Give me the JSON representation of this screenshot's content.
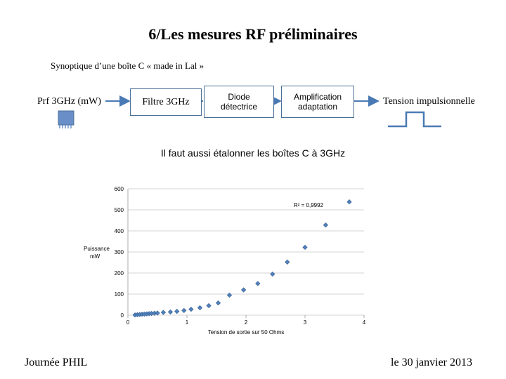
{
  "slide": {
    "title": "6/Les mesures RF préliminaires",
    "subtitle": "Synoptique d’une boîte C « made in Lal »",
    "note": "Il faut aussi étalonner les boîtes C à 3GHz",
    "footer_left": "Journée PHIL",
    "footer_right": "le 30 janvier 2013"
  },
  "diagram": {
    "input_label": "Prf 3GHz (mW)",
    "filter_label": "Filtre 3GHz",
    "diode_label_line1": "Diode",
    "diode_label_line2": "détectrice",
    "ampli_label_line1": "Amplification",
    "ampli_label_line2": "adaptation",
    "output_label": "Tension impulsionnelle",
    "box_border_color": "#4a6f96",
    "connector_color": "#4a7ab5",
    "icon_input": "rf-connector-icon",
    "icon_output": "pulse-waveform-icon"
  },
  "chart_data": {
    "type": "scatter",
    "xlabel": "Tension de sortie sur 50 Ohms",
    "ylabel_line1": "Puissance",
    "ylabel_line2": "mW",
    "xlim": [
      0,
      4
    ],
    "ylim": [
      0,
      600
    ],
    "xticks": [
      "0",
      "1",
      "2",
      "3",
      "4"
    ],
    "yticks": [
      "0",
      "100",
      "200",
      "300",
      "400",
      "500",
      "600"
    ],
    "grid": true,
    "annotation": "R² = 0,9992",
    "marker_color": "#4f81bd",
    "points": [
      [
        0.12,
        1
      ],
      [
        0.16,
        2
      ],
      [
        0.2,
        3
      ],
      [
        0.24,
        4
      ],
      [
        0.28,
        5
      ],
      [
        0.32,
        6
      ],
      [
        0.36,
        7
      ],
      [
        0.4,
        8
      ],
      [
        0.45,
        9
      ],
      [
        0.5,
        10
      ],
      [
        0.6,
        13
      ],
      [
        0.72,
        15
      ],
      [
        0.83,
        18
      ],
      [
        0.95,
        22
      ],
      [
        1.07,
        28
      ],
      [
        1.22,
        35
      ],
      [
        1.37,
        45
      ],
      [
        1.53,
        58
      ],
      [
        1.72,
        95
      ],
      [
        1.96,
        120
      ],
      [
        2.2,
        150
      ],
      [
        2.45,
        195
      ],
      [
        2.7,
        252
      ],
      [
        3.0,
        322
      ],
      [
        3.35,
        428
      ],
      [
        3.75,
        538
      ]
    ]
  }
}
